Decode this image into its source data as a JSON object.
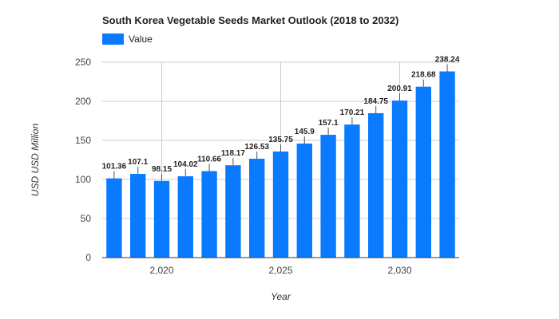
{
  "chart_data": {
    "type": "bar",
    "title": "South Korea Vegetable Seeds Market Outlook (2018 to 2032)",
    "xlabel": "Year",
    "ylabel": "USD USD Million",
    "legend": {
      "position": "top-left"
    },
    "color": "#0a7bff",
    "ylim": [
      0,
      250
    ],
    "yticks": [
      0,
      50,
      100,
      150,
      200,
      250
    ],
    "xtick_labels": [
      "2,020",
      "2,025",
      "2,030"
    ],
    "xtick_values": [
      2020,
      2025,
      2030
    ],
    "grid": true,
    "series": [
      {
        "name": "Value",
        "x": [
          2018,
          2019,
          2020,
          2021,
          2022,
          2023,
          2024,
          2025,
          2026,
          2027,
          2028,
          2029,
          2030,
          2031,
          2032
        ],
        "values": [
          101.36,
          107.1,
          98.15,
          104.02,
          110.66,
          118.17,
          126.53,
          135.75,
          145.9,
          157.1,
          170.21,
          184.75,
          200.91,
          218.68,
          238.24
        ]
      }
    ]
  }
}
